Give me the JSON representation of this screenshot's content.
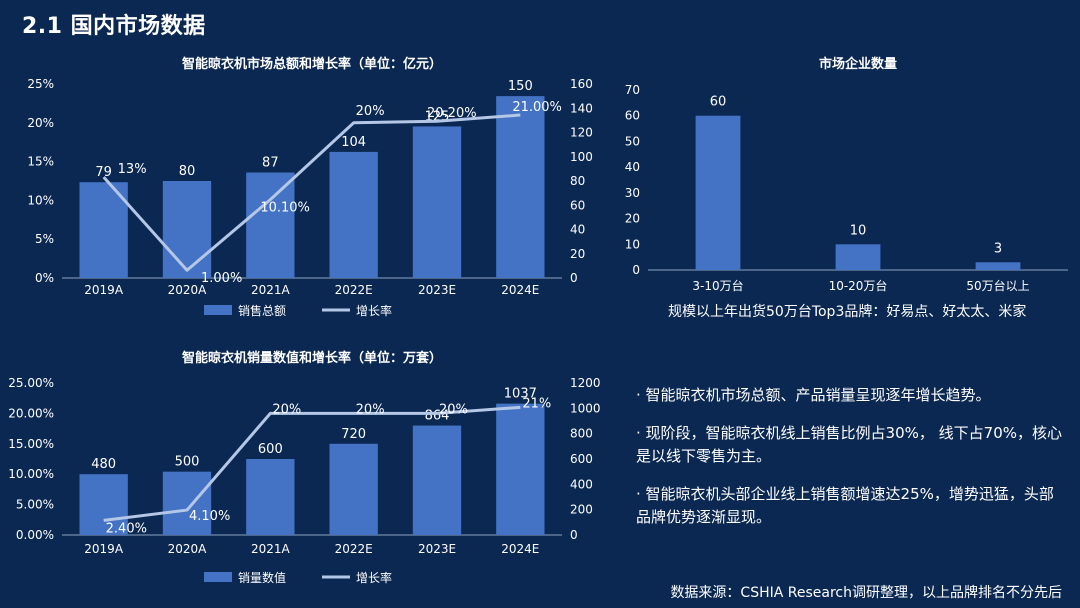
{
  "page": {
    "title": "2.1 国内市场数据",
    "bullets": [
      "· 智能晾衣机市场总额、产品销量呈现逐年增长趋势。",
      "· 现阶段，智能晾衣机线上销售比例占30%， 线下占70%，核心是以线下零售为主。",
      "· 智能晾衣机头部企业线上销售额增速达25%，增势迅猛，头部品牌优势逐渐显现。"
    ],
    "source": "数据来源：CSHIA Research调研整理，以上品牌排名不分先后"
  },
  "colors": {
    "bar": "#4472c4",
    "line": "#b4c7e7",
    "background": "#0b2852",
    "grid": "#2f4d78"
  },
  "chart_data": [
    {
      "id": "market",
      "type": "bar+line",
      "title": "智能晾衣机市场总额和增长率（单位：亿元）",
      "categories": [
        "2019A",
        "2020A",
        "2021A",
        "2022E",
        "2023E",
        "2024E"
      ],
      "series": [
        {
          "name": "销售总额",
          "type": "bar",
          "axis": "right",
          "values": [
            79,
            80,
            87,
            104,
            125,
            150
          ],
          "labels": [
            "79",
            "80",
            "87",
            "104",
            "125",
            "150"
          ]
        },
        {
          "name": "增长率",
          "type": "line",
          "axis": "left",
          "values": [
            13,
            1,
            10.1,
            20,
            20.2,
            21
          ],
          "labels": [
            "13%",
            "1.00%",
            "10.10%",
            "20%",
            "20.20%",
            "21.00%"
          ]
        }
      ],
      "left_axis": {
        "ticks": [
          0,
          5,
          10,
          15,
          20,
          25
        ],
        "tick_labels": [
          "0%",
          "5%",
          "10%",
          "15%",
          "20%",
          "25%"
        ],
        "range": [
          0,
          25
        ]
      },
      "right_axis": {
        "ticks": [
          0,
          20,
          40,
          60,
          80,
          100,
          120,
          140,
          160
        ],
        "tick_labels": [
          "0",
          "20",
          "40",
          "60",
          "80",
          "100",
          "120",
          "140",
          "160"
        ],
        "range": [
          0,
          160
        ]
      },
      "legend": [
        "销售总额",
        "增长率"
      ]
    },
    {
      "id": "companies",
      "type": "bar",
      "title": "市场企业数量",
      "categories": [
        "3-10万台",
        "10-20万台",
        "50万台以上"
      ],
      "values": [
        60,
        10,
        3
      ],
      "labels": [
        "60",
        "10",
        "3"
      ],
      "y_axis": {
        "ticks": [
          0,
          10,
          20,
          30,
          40,
          50,
          60,
          70
        ],
        "tick_labels": [
          "0",
          "10",
          "20",
          "30",
          "40",
          "50",
          "60",
          "70"
        ],
        "range": [
          0,
          70
        ]
      },
      "note": "规模以上年出货50万台Top3品牌：好易点、好太太、米家"
    },
    {
      "id": "volume",
      "type": "bar+line",
      "title": "智能晾衣机销量数值和增长率（单位：万套）",
      "categories": [
        "2019A",
        "2020A",
        "2021A",
        "2022E",
        "2023E",
        "2024E"
      ],
      "series": [
        {
          "name": "销量数值",
          "type": "bar",
          "axis": "right",
          "values": [
            480,
            500,
            600,
            720,
            864,
            1037
          ],
          "labels": [
            "480",
            "500",
            "600",
            "720",
            "864",
            "1037"
          ]
        },
        {
          "name": "增长率",
          "type": "line",
          "axis": "left",
          "values": [
            2.4,
            4.1,
            20,
            20,
            20,
            21
          ],
          "labels": [
            "2.40%",
            "4.10%",
            "20%",
            "20%",
            "20%",
            "21%"
          ]
        }
      ],
      "left_axis": {
        "ticks": [
          0,
          5,
          10,
          15,
          20,
          25
        ],
        "tick_labels": [
          "0.00%",
          "5.00%",
          "10.00%",
          "15.00%",
          "20.00%",
          "25.00%"
        ],
        "range": [
          0,
          25
        ]
      },
      "right_axis": {
        "ticks": [
          0,
          200,
          400,
          600,
          800,
          1000,
          1200
        ],
        "tick_labels": [
          "0",
          "200",
          "400",
          "600",
          "800",
          "1000",
          "1200"
        ],
        "range": [
          0,
          1200
        ]
      },
      "legend": [
        "销量数值",
        "增长率"
      ]
    }
  ]
}
